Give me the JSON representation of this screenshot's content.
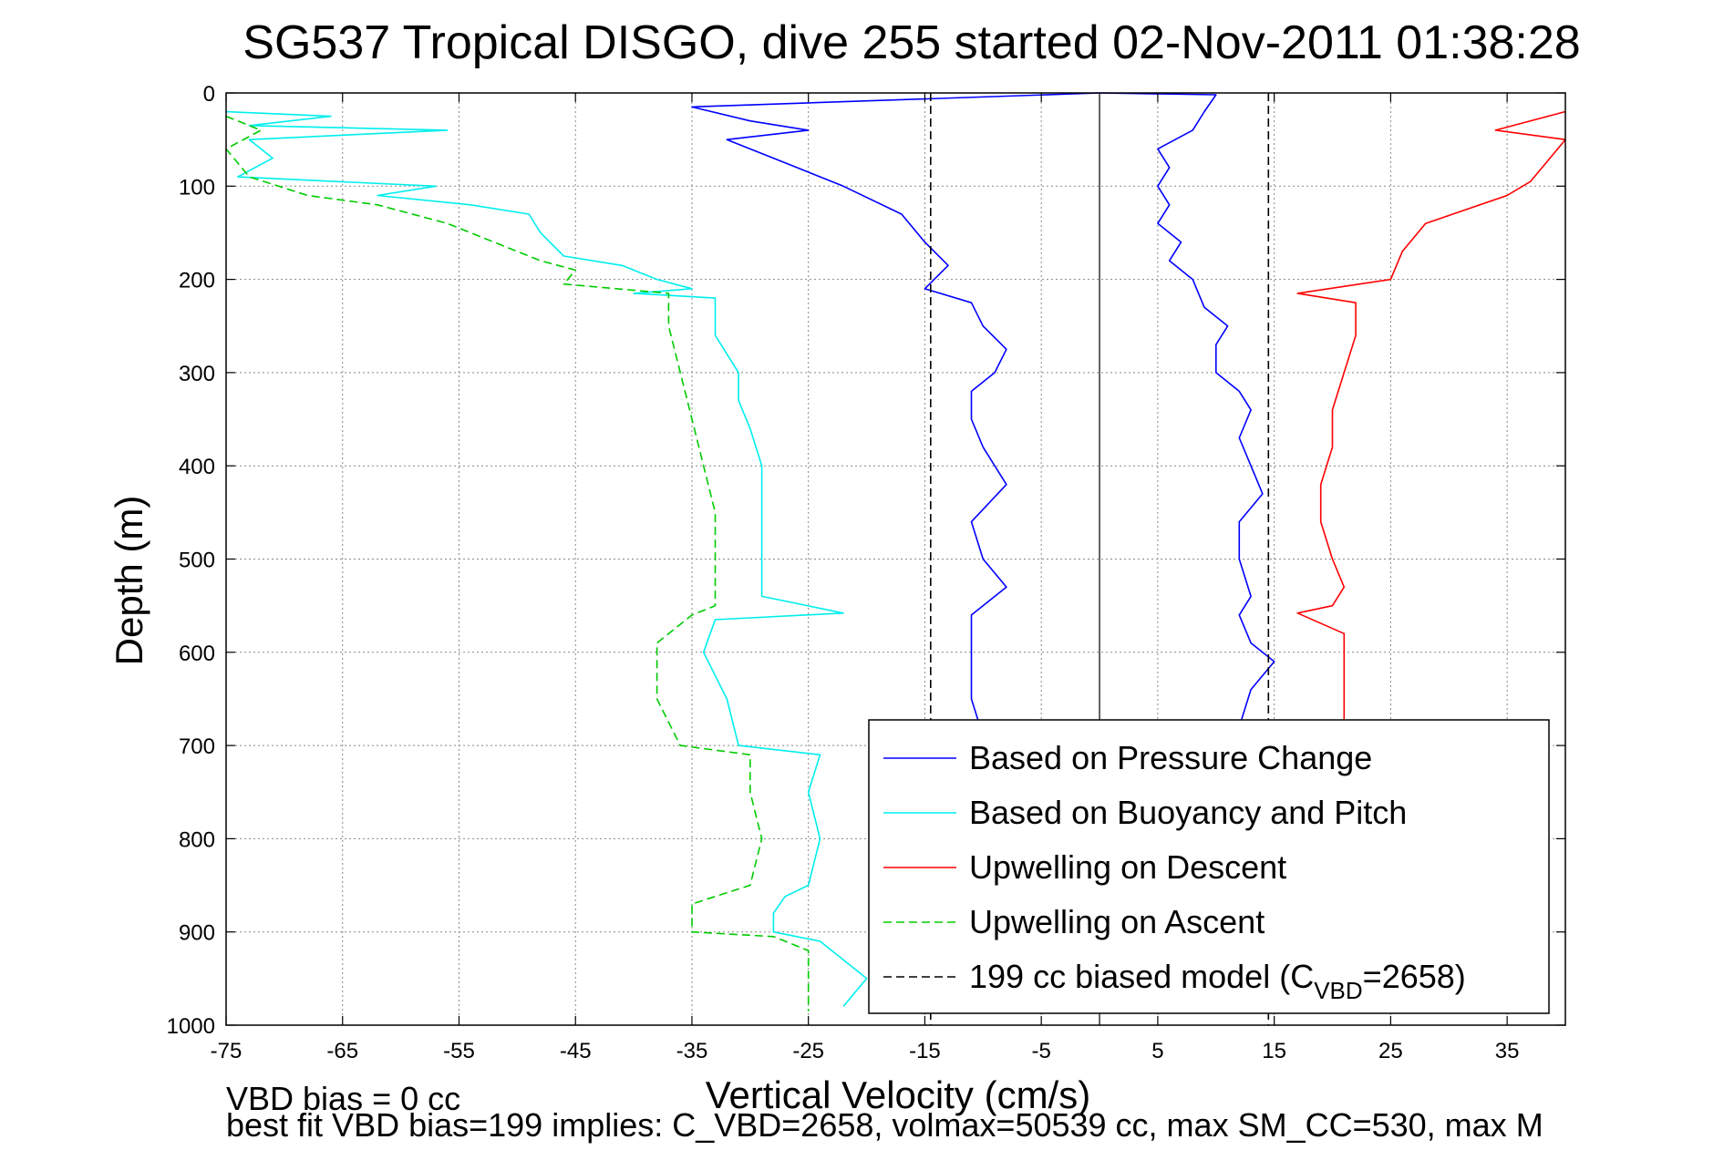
{
  "chart_data": {
    "type": "line",
    "title": "SG537 Tropical DISGO, dive 255 started 02-Nov-2011 01:38:28",
    "xlabel": "Vertical Velocity (cm/s)",
    "ylabel": "Depth (m)",
    "xlim": [
      -75,
      40
    ],
    "ylim": [
      0,
      1000
    ],
    "y_reversed": true,
    "grid": true,
    "legend_position": "bottom-right",
    "x_ticks": [
      -75,
      -65,
      -55,
      -45,
      -35,
      -25,
      -15,
      -5,
      5,
      15,
      25,
      35
    ],
    "y_ticks": [
      0,
      100,
      200,
      300,
      400,
      500,
      600,
      700,
      800,
      900,
      1000
    ],
    "series": [
      {
        "name": "Based on Pressure Change",
        "color": "#0000ff",
        "style": "solid",
        "points": [
          [
            0,
            0
          ],
          [
            -35,
            15
          ],
          [
            -30,
            30
          ],
          [
            -25,
            40
          ],
          [
            -32,
            50
          ],
          [
            -29,
            65
          ],
          [
            -26,
            80
          ],
          [
            -22,
            100
          ],
          [
            -17,
            130
          ],
          [
            -15,
            160
          ],
          [
            -13,
            185
          ],
          [
            -15,
            210
          ],
          [
            -11,
            225
          ],
          [
            -10,
            250
          ],
          [
            -8,
            275
          ],
          [
            -9,
            300
          ],
          [
            -11,
            320
          ],
          [
            -11,
            350
          ],
          [
            -10,
            380
          ],
          [
            -8,
            420
          ],
          [
            -11,
            460
          ],
          [
            -10,
            500
          ],
          [
            -8,
            530
          ],
          [
            -11,
            560
          ],
          [
            -11,
            600
          ],
          [
            -11,
            650
          ],
          [
            -10,
            690
          ]
        ]
      },
      {
        "name": "Based on Pressure Change",
        "color": "#0000ff",
        "style": "solid",
        "points": [
          [
            0,
            0
          ],
          [
            10,
            2
          ],
          [
            9,
            20
          ],
          [
            8,
            40
          ],
          [
            5,
            60
          ],
          [
            6,
            80
          ],
          [
            5,
            100
          ],
          [
            6,
            120
          ],
          [
            5,
            140
          ],
          [
            7,
            160
          ],
          [
            6,
            180
          ],
          [
            8,
            200
          ],
          [
            9,
            230
          ],
          [
            11,
            250
          ],
          [
            10,
            270
          ],
          [
            10,
            300
          ],
          [
            12,
            320
          ],
          [
            13,
            340
          ],
          [
            12,
            370
          ],
          [
            13,
            400
          ],
          [
            14,
            430
          ],
          [
            12,
            460
          ],
          [
            12,
            500
          ],
          [
            13,
            540
          ],
          [
            12,
            560
          ],
          [
            13,
            590
          ],
          [
            15,
            610
          ],
          [
            13,
            640
          ],
          [
            12,
            680
          ]
        ]
      },
      {
        "name": "Based on Buoyancy and Pitch",
        "color": "#00eeee",
        "style": "solid",
        "points": [
          [
            -75,
            20
          ],
          [
            -66,
            25
          ],
          [
            -73,
            35
          ],
          [
            -56,
            40
          ],
          [
            -73,
            50
          ],
          [
            -71,
            70
          ],
          [
            -74,
            90
          ],
          [
            -57,
            100
          ],
          [
            -62,
            110
          ],
          [
            -54,
            120
          ],
          [
            -49,
            130
          ],
          [
            -48,
            150
          ],
          [
            -46,
            175
          ],
          [
            -41,
            185
          ],
          [
            -38,
            200
          ],
          [
            -35,
            210
          ],
          [
            -40,
            215
          ],
          [
            -33,
            220
          ],
          [
            -33,
            260
          ],
          [
            -31,
            300
          ],
          [
            -31,
            330
          ],
          [
            -30,
            360
          ],
          [
            -29,
            400
          ],
          [
            -29,
            450
          ],
          [
            -29,
            500
          ],
          [
            -29,
            540
          ],
          [
            -22,
            558
          ],
          [
            -33,
            565
          ],
          [
            -34,
            600
          ],
          [
            -32,
            650
          ],
          [
            -31,
            700
          ],
          [
            -24,
            710
          ],
          [
            -25,
            750
          ],
          [
            -24,
            800
          ],
          [
            -25,
            850
          ],
          [
            -27,
            862
          ],
          [
            -28,
            880
          ],
          [
            -28,
            900
          ],
          [
            -24,
            910
          ],
          [
            -20,
            950
          ],
          [
            -22,
            980
          ]
        ]
      },
      {
        "name": "Upwelling on Descent",
        "color": "#ff0000",
        "style": "solid",
        "points": [
          [
            40,
            20
          ],
          [
            34,
            40
          ],
          [
            40,
            50
          ],
          [
            37,
            95
          ],
          [
            35,
            110
          ],
          [
            28,
            140
          ],
          [
            26,
            170
          ],
          [
            25,
            200
          ],
          [
            17,
            215
          ],
          [
            22,
            225
          ],
          [
            22,
            260
          ],
          [
            21,
            300
          ],
          [
            20,
            340
          ],
          [
            20,
            380
          ],
          [
            19,
            420
          ],
          [
            19,
            460
          ],
          [
            20,
            500
          ],
          [
            21,
            530
          ],
          [
            20,
            550
          ],
          [
            17,
            558
          ],
          [
            21,
            580
          ],
          [
            21,
            620
          ],
          [
            21,
            660
          ],
          [
            21,
            690
          ]
        ]
      },
      {
        "name": "Upwelling on Ascent",
        "color": "#00cc00",
        "style": "dashed",
        "points": [
          [
            -75,
            25
          ],
          [
            -72,
            40
          ],
          [
            -75,
            60
          ],
          [
            -73,
            90
          ],
          [
            -68,
            110
          ],
          [
            -62,
            120
          ],
          [
            -56,
            140
          ],
          [
            -52,
            160
          ],
          [
            -48,
            180
          ],
          [
            -45,
            190
          ],
          [
            -46,
            205
          ],
          [
            -37,
            215
          ],
          [
            -37,
            250
          ],
          [
            -36,
            300
          ],
          [
            -35,
            350
          ],
          [
            -34,
            400
          ],
          [
            -33,
            450
          ],
          [
            -33,
            500
          ],
          [
            -33,
            550
          ],
          [
            -35,
            560
          ],
          [
            -38,
            590
          ],
          [
            -38,
            650
          ],
          [
            -36,
            700
          ],
          [
            -30,
            710
          ],
          [
            -30,
            750
          ],
          [
            -29,
            800
          ],
          [
            -30,
            850
          ],
          [
            -35,
            870
          ],
          [
            -35,
            900
          ],
          [
            -28,
            905
          ],
          [
            -25,
            920
          ],
          [
            -25,
            960
          ],
          [
            -25,
            985
          ]
        ]
      },
      {
        "name": "199 cc biased model (C_VBD=2658)",
        "color": "#000000",
        "style": "dashed",
        "points": [
          [
            -14.5,
            0
          ],
          [
            -14.5,
            1000
          ]
        ]
      },
      {
        "name": "199 cc biased model (C_VBD=2658)",
        "color": "#000000",
        "style": "dashed",
        "points": [
          [
            14.5,
            0
          ],
          [
            14.5,
            1000
          ]
        ]
      }
    ],
    "zero_line": {
      "x": 0,
      "color": "#000000"
    },
    "legend": [
      {
        "label_main": "Based on Pressure Change",
        "label_sub": "",
        "label_tail": "",
        "color": "#0000ff",
        "style": "solid"
      },
      {
        "label_main": "Based on Buoyancy and Pitch",
        "label_sub": "",
        "label_tail": "",
        "color": "#00eeee",
        "style": "solid"
      },
      {
        "label_main": "Upwelling on Descent",
        "label_sub": "",
        "label_tail": "",
        "color": "#ff0000",
        "style": "solid"
      },
      {
        "label_main": "Upwelling on Ascent",
        "label_sub": "",
        "label_tail": "",
        "color": "#00cc00",
        "style": "dashed"
      },
      {
        "label_main": "199 cc biased model (C",
        "label_sub": "VBD",
        "label_tail": "=2658)",
        "color": "#000000",
        "style": "dashed"
      }
    ]
  },
  "footnotes": {
    "line1": "VBD bias = 0 cc",
    "line2": "best fit VBD bias=199 implies: C_VBD=2658, volmax=50539 cc, max SM_CC=530, max M"
  }
}
